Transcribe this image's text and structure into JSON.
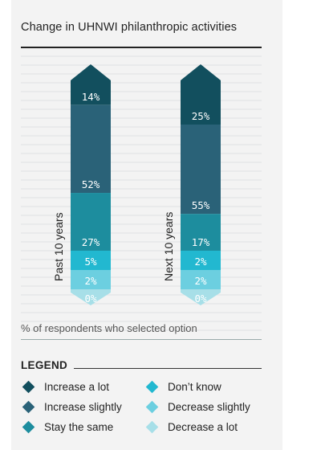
{
  "title": "Change in UHNWI philanthropic activities",
  "note": "% of respondents who selected option",
  "legend_title": "LEGEND",
  "legend": [
    {
      "label": "Increase a lot",
      "color": "#124f5e"
    },
    {
      "label": "Increase slightly",
      "color": "#2a6278"
    },
    {
      "label": "Stay the same",
      "color": "#1d8d9e"
    },
    {
      "label": "Don’t know",
      "color": "#22b8d0"
    },
    {
      "label": "Decrease slightly",
      "color": "#6ccfe0"
    },
    {
      "label": "Decrease a lot",
      "color": "#a7dfe8"
    }
  ],
  "chart_data": {
    "type": "bar",
    "stacked": true,
    "categories": [
      "Past 10 years",
      "Next 10 years"
    ],
    "series": [
      {
        "name": "Increase a lot",
        "values": [
          14,
          25
        ]
      },
      {
        "name": "Increase slightly",
        "values": [
          52,
          55
        ]
      },
      {
        "name": "Stay the same",
        "values": [
          27,
          17
        ]
      },
      {
        "name": "Don’t know",
        "values": [
          5,
          2
        ]
      },
      {
        "name": "Decrease slightly",
        "values": [
          2,
          2
        ]
      },
      {
        "name": "Decrease a lot",
        "values": [
          0,
          0
        ]
      }
    ],
    "title": "Change in UHNWI philanthropic activities",
    "ylabel": "% of respondents who selected option",
    "grid": true,
    "legend": "bottom"
  }
}
